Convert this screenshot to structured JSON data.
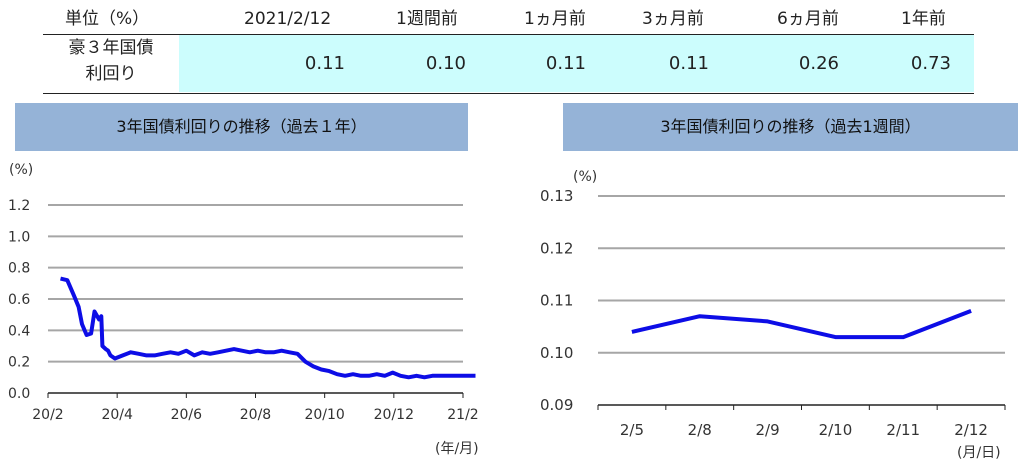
{
  "table": {
    "header": [
      "単位（%）",
      "2021/2/12",
      "1週間前",
      "1ヵ月前",
      "3ヵ月前",
      "6ヵ月前",
      "1年前"
    ],
    "row_label_line1": "豪３年国債",
    "row_label_line2": "利回り",
    "values": [
      "0.11",
      "0.10",
      "0.11",
      "0.11",
      "0.26",
      "0.73"
    ]
  },
  "colors": {
    "line": "#0d0de6",
    "title_bg": "#95b3d7",
    "value_bg": "#ccfdfd",
    "grid": "#a6a6a6"
  },
  "chart_data": [
    {
      "type": "line",
      "title": "3年国債利回りの推移（過去１年）",
      "unit_label": "(%)",
      "xunit_label": "(年/月)",
      "ylim": [
        0.0,
        1.2
      ],
      "yticks": [
        "0.0",
        "0.2",
        "0.4",
        "0.6",
        "0.8",
        "1.0",
        "1.2"
      ],
      "xticks": [
        "20/2",
        "20/4",
        "20/6",
        "20/8",
        "20/10",
        "20/12",
        "21/2"
      ],
      "grid": true,
      "series": [
        {
          "x": [
            "2020-02-12",
            "2020-02-18",
            "2020-02-24",
            "2020-02-28",
            "2020-03-02",
            "2020-03-06",
            "2020-03-10",
            "2020-03-13",
            "2020-03-17",
            "2020-03-19",
            "2020-03-20",
            "2020-03-23",
            "2020-03-25",
            "2020-03-27",
            "2020-03-31",
            "2020-04-07",
            "2020-04-14",
            "2020-04-21",
            "2020-04-28",
            "2020-05-05",
            "2020-05-12",
            "2020-05-19",
            "2020-05-26",
            "2020-06-02",
            "2020-06-09",
            "2020-06-16",
            "2020-06-23",
            "2020-06-30",
            "2020-07-07",
            "2020-07-14",
            "2020-07-21",
            "2020-07-28",
            "2020-08-04",
            "2020-08-11",
            "2020-08-18",
            "2020-08-25",
            "2020-09-01",
            "2020-09-08",
            "2020-09-15",
            "2020-09-22",
            "2020-09-29",
            "2020-10-06",
            "2020-10-13",
            "2020-10-20",
            "2020-10-27",
            "2020-11-03",
            "2020-11-10",
            "2020-11-17",
            "2020-11-24",
            "2020-12-01",
            "2020-12-08",
            "2020-12-15",
            "2020-12-22",
            "2020-12-29",
            "2021-01-05",
            "2021-01-12",
            "2021-01-19",
            "2021-01-26",
            "2021-02-02",
            "2021-02-12"
          ],
          "y": [
            0.73,
            0.72,
            0.62,
            0.55,
            0.44,
            0.37,
            0.38,
            0.52,
            0.47,
            0.49,
            0.3,
            0.28,
            0.27,
            0.24,
            0.22,
            0.24,
            0.26,
            0.25,
            0.24,
            0.24,
            0.25,
            0.26,
            0.25,
            0.27,
            0.24,
            0.26,
            0.25,
            0.26,
            0.27,
            0.28,
            0.27,
            0.26,
            0.27,
            0.26,
            0.26,
            0.27,
            0.26,
            0.25,
            0.2,
            0.17,
            0.15,
            0.14,
            0.12,
            0.11,
            0.12,
            0.11,
            0.11,
            0.12,
            0.11,
            0.13,
            0.11,
            0.1,
            0.11,
            0.1,
            0.11,
            0.11,
            0.11,
            0.11,
            0.11,
            0.11
          ]
        }
      ]
    },
    {
      "type": "line",
      "title": "3年国債利回りの推移（過去1週間）",
      "unit_label": "(%)",
      "xunit_label": "(月/日)",
      "ylim": [
        0.09,
        0.13
      ],
      "yticks": [
        "0.09",
        "0.10",
        "0.11",
        "0.12",
        "0.13"
      ],
      "categories": [
        "2/5",
        "2/8",
        "2/9",
        "2/10",
        "2/11",
        "2/12"
      ],
      "grid": true,
      "series": [
        {
          "values": [
            0.104,
            0.107,
            0.106,
            0.103,
            0.103,
            0.108
          ]
        }
      ]
    }
  ]
}
